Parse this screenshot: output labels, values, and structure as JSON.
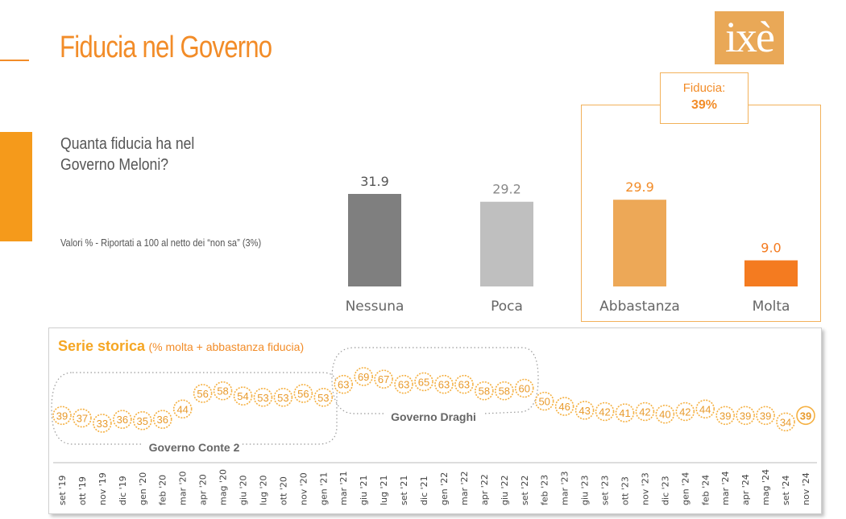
{
  "title": "Fiducia nel Governo",
  "logo": "ixè",
  "question": "Quanta fiducia ha nel Governo Meloni?",
  "note": "Valori % - Riportati a 100 al netto dei “non sa” (3%)",
  "fiducia_label": "Fiducia:",
  "fiducia_value": "39%",
  "history_title": "Serie storica",
  "history_subtitle": "(% molta + abbastanza fiducia)",
  "groups": [
    "Governo Conte 2",
    "Governo Draghi"
  ],
  "colors": {
    "accent": "#f28c28",
    "nessuna": "#7f7f7f",
    "poca": "#bfbfbf",
    "abbastanza": "#eda857",
    "molta": "#f47b20",
    "bubble": "#f5b041"
  },
  "chart_data": [
    {
      "type": "bar",
      "categories": [
        "Nessuna",
        "Poca",
        "Abbastanza",
        "Molta"
      ],
      "values": [
        31.9,
        29.2,
        29.9,
        9.0
      ],
      "value_labels": [
        "31.9",
        "29.2",
        "29.9",
        "9.0"
      ]
    },
    {
      "type": "line",
      "title": "Serie storica",
      "subtitle": "(% molta + abbastanza fiducia)",
      "x": [
        "set '19",
        "ott '19",
        "nov '19",
        "dic '19",
        "gen '20",
        "feb '20",
        "mar '20",
        "apr '20",
        "mag '20",
        "giu '20",
        "lug '20",
        "ott '20",
        "nov '20",
        "gen '21",
        "mar '21",
        "giu '21",
        "lug '21",
        "set '21",
        "dic '21",
        "gen '22",
        "mar '22",
        "apr '22",
        "giu '22",
        "set '22",
        "feb '23",
        "mar '23",
        "giu '23",
        "set '23",
        "ott '23",
        "nov '23",
        "dic '23",
        "gen '24",
        "feb '24",
        "mar '24",
        "apr '24",
        "mag '24",
        "set '24",
        "nov '24"
      ],
      "values": [
        39,
        37,
        33,
        36,
        35,
        36,
        44,
        56,
        58,
        54,
        53,
        53,
        56,
        53,
        63,
        69,
        67,
        63,
        65,
        63,
        63,
        58,
        58,
        60,
        50,
        46,
        43,
        42,
        41,
        42,
        40,
        42,
        44,
        39,
        39,
        39,
        34,
        39
      ]
    }
  ]
}
